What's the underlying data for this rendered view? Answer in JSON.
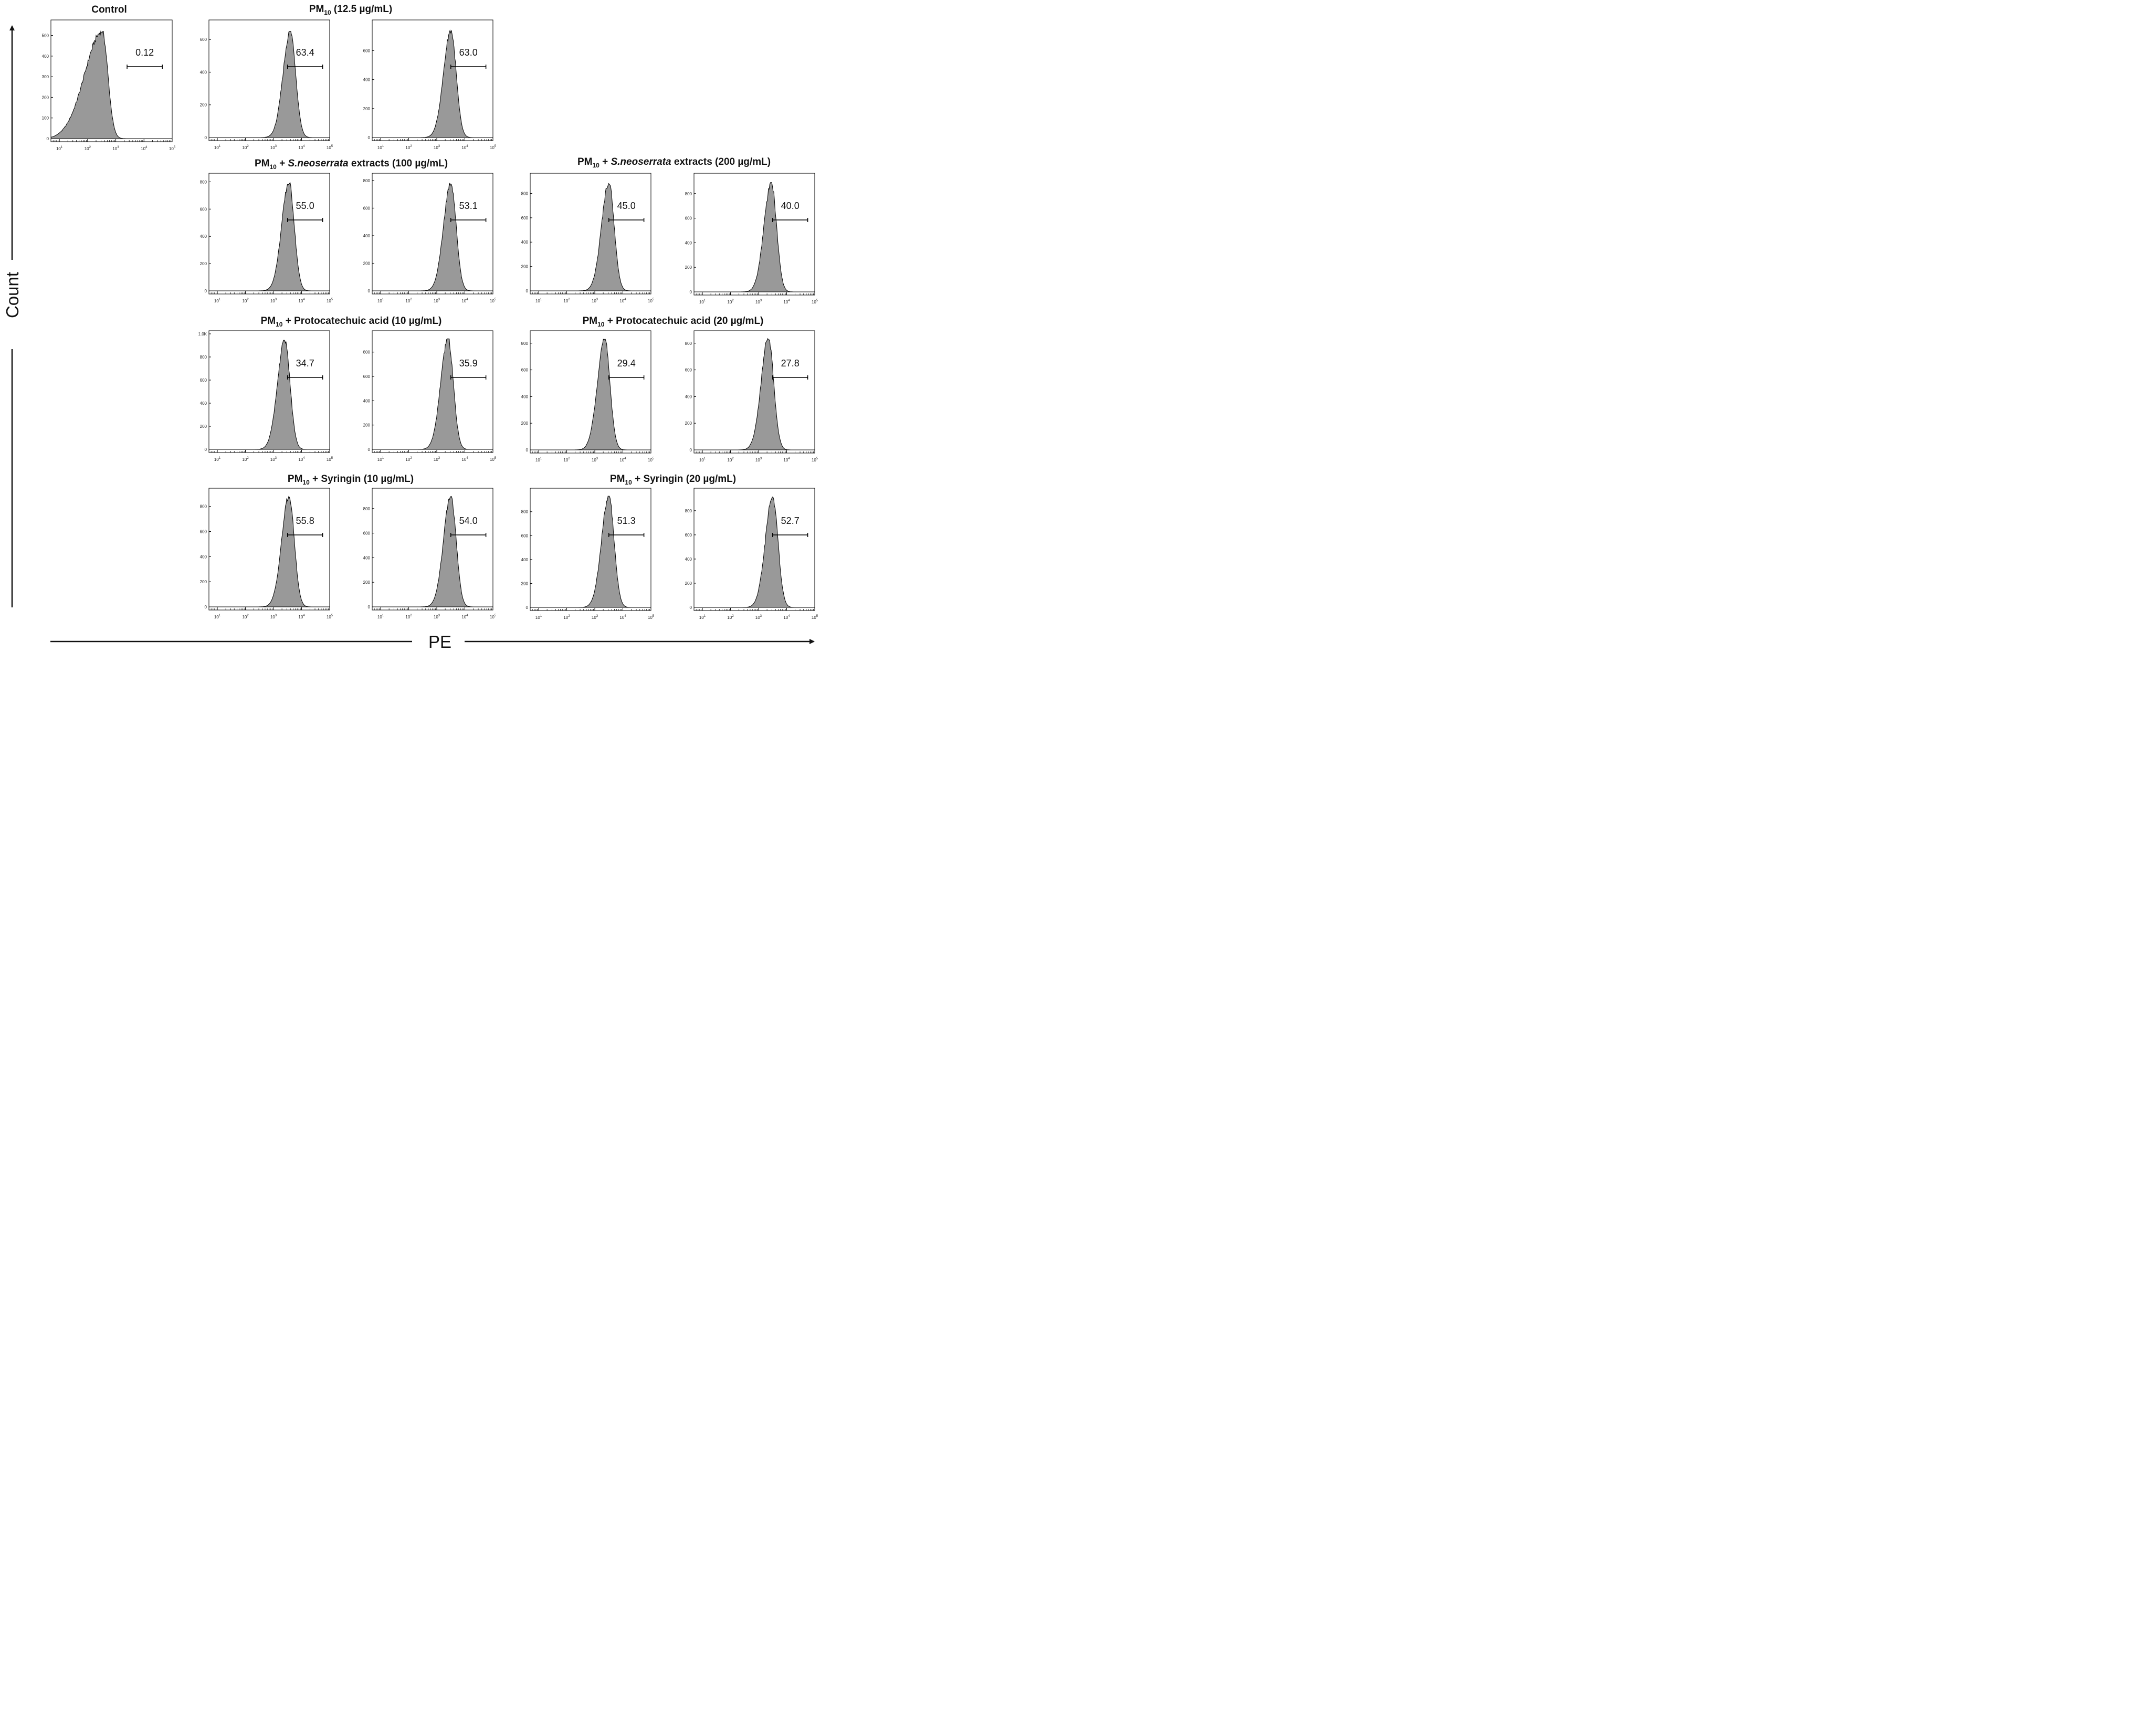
{
  "figure": {
    "y_axis_label": "Count",
    "x_axis_label": "PE",
    "titles": {
      "control": "Control",
      "pm10_only": {
        "main": "PM",
        "sub": "10",
        "rest": " (12.5 µg/mL)"
      },
      "sn_100": {
        "main": "PM",
        "sub": "10",
        "mid": " + ",
        "italic": "S.neoserrata",
        "rest": " extracts (100 µg/mL)"
      },
      "sn_200": {
        "main": "PM",
        "sub": "10",
        "mid": " + ",
        "italic": "S.neoserrata",
        "rest": " extracts (200 µg/mL)"
      },
      "pca_10": {
        "main": "PM",
        "sub": "10",
        "rest": " + Protocatechuic acid (10 µg/mL)"
      },
      "pca_20": {
        "main": "PM",
        "sub": "10",
        "rest": " + Protocatechuic acid (20 µg/mL)"
      },
      "syr_10": {
        "main": "PM",
        "sub": "10",
        "rest": " + Syringin (10 µg/mL)"
      },
      "syr_20": {
        "main": "PM",
        "sub": "10",
        "rest": " + Syringin (20 µg/mL)"
      }
    }
  },
  "chart_data": [
    {
      "type": "area",
      "group": "Control",
      "gate_percent": "0.12",
      "peak_log10": 2.52,
      "peak_count": 520,
      "ylim": [
        0,
        560
      ],
      "yticks": [
        "0",
        "100",
        "200",
        "300",
        "400",
        "500"
      ],
      "xlim": [
        0.7,
        5.0
      ],
      "xticks": [
        "1",
        "2",
        "3",
        "4",
        "5"
      ],
      "x_scale": "log10",
      "gate_log10": [
        3.4,
        4.65
      ],
      "fill": "#999999"
    },
    {
      "type": "area",
      "group": "PM10 (12.5 µg/mL)",
      "replicate": 1,
      "gate_percent": "63.4",
      "peak_log10": 3.6,
      "peak_count": 650,
      "ylim": [
        0,
        700
      ],
      "yticks": [
        "0",
        "200",
        "400",
        "600"
      ],
      "xlim": [
        0.7,
        5.0
      ],
      "xticks": [
        "1",
        "2",
        "3",
        "4",
        "5"
      ],
      "x_scale": "log10",
      "gate_log10": [
        3.5,
        4.75
      ],
      "fill": "#999999"
    },
    {
      "type": "area",
      "group": "PM10 (12.5 µg/mL)",
      "replicate": 2,
      "gate_percent": "63.0",
      "peak_log10": 3.5,
      "peak_count": 740,
      "ylim": [
        0,
        790
      ],
      "yticks": [
        "0",
        "200",
        "400",
        "600"
      ],
      "xlim": [
        0.7,
        5.0
      ],
      "xticks": [
        "1",
        "2",
        "3",
        "4",
        "5"
      ],
      "x_scale": "log10",
      "gate_log10": [
        3.5,
        4.75
      ],
      "fill": "#999999"
    },
    {
      "type": "area",
      "group": "PM10 + S.neoserrata extracts (100 µg/mL)",
      "replicate": 1,
      "gate_percent": "55.0",
      "peak_log10": 3.55,
      "peak_count": 795,
      "ylim": [
        0,
        840
      ],
      "yticks": [
        "0",
        "200",
        "400",
        "600",
        "800"
      ],
      "xlim": [
        0.7,
        5.0
      ],
      "xticks": [
        "1",
        "2",
        "3",
        "4",
        "5"
      ],
      "x_scale": "log10",
      "gate_log10": [
        3.5,
        4.75
      ],
      "fill": "#999999"
    },
    {
      "type": "area",
      "group": "PM10 + S.neoserrata extracts (100 µg/mL)",
      "replicate": 2,
      "gate_percent": "53.1",
      "peak_log10": 3.5,
      "peak_count": 785,
      "ylim": [
        0,
        830
      ],
      "yticks": [
        "0",
        "200",
        "400",
        "600",
        "800"
      ],
      "xlim": [
        0.7,
        5.0
      ],
      "xticks": [
        "1",
        "2",
        "3",
        "4",
        "5"
      ],
      "x_scale": "log10",
      "gate_log10": [
        3.5,
        4.75
      ],
      "fill": "#999999"
    },
    {
      "type": "area",
      "group": "PM10 + S.neoserrata extracts (200 µg/mL)",
      "replicate": 1,
      "gate_percent": "45.0",
      "peak_log10": 3.5,
      "peak_count": 890,
      "ylim": [
        0,
        940
      ],
      "yticks": [
        "0",
        "200",
        "400",
        "600",
        "800"
      ],
      "xlim": [
        0.7,
        5.0
      ],
      "xticks": [
        "1",
        "2",
        "3",
        "4",
        "5"
      ],
      "x_scale": "log10",
      "gate_log10": [
        3.5,
        4.75
      ],
      "fill": "#999999"
    },
    {
      "type": "area",
      "group": "PM10 + S.neoserrata extracts (200 µg/mL)",
      "replicate": 2,
      "gate_percent": "40.0",
      "peak_log10": 3.45,
      "peak_count": 890,
      "ylim": [
        0,
        940
      ],
      "yticks": [
        "0",
        "200",
        "400",
        "600",
        "800"
      ],
      "xlim": [
        0.7,
        5.0
      ],
      "xticks": [
        "1",
        "2",
        "3",
        "4",
        "5"
      ],
      "x_scale": "log10",
      "gate_log10": [
        3.5,
        4.75
      ],
      "fill": "#999999"
    },
    {
      "type": "area",
      "group": "PM10 + Protocatechuic acid (10 µg/mL)",
      "replicate": 1,
      "gate_percent": "34.7",
      "peak_log10": 3.4,
      "peak_count": 945,
      "ylim": [
        0,
        1000
      ],
      "yticks": [
        "0",
        "200",
        "400",
        "600",
        "800",
        "1.0K"
      ],
      "xlim": [
        0.7,
        5.0
      ],
      "xticks": [
        "1",
        "2",
        "3",
        "4",
        "5"
      ],
      "x_scale": "log10",
      "gate_log10": [
        3.5,
        4.75
      ],
      "fill": "#999999"
    },
    {
      "type": "area",
      "group": "PM10 + Protocatechuic acid (10 µg/mL)",
      "replicate": 2,
      "gate_percent": "35.9",
      "peak_log10": 3.4,
      "peak_count": 910,
      "ylim": [
        0,
        950
      ],
      "yticks": [
        "0",
        "200",
        "400",
        "600",
        "800"
      ],
      "xlim": [
        0.7,
        5.0
      ],
      "xticks": [
        "1",
        "2",
        "3",
        "4",
        "5"
      ],
      "x_scale": "log10",
      "gate_log10": [
        3.5,
        4.75
      ],
      "fill": "#999999"
    },
    {
      "type": "area",
      "group": "PM10 + Protocatechuic acid (20 µg/mL)",
      "replicate": 1,
      "gate_percent": "29.4",
      "peak_log10": 3.35,
      "peak_count": 830,
      "ylim": [
        0,
        870
      ],
      "yticks": [
        "0",
        "200",
        "400",
        "600",
        "800"
      ],
      "xlim": [
        0.7,
        5.0
      ],
      "xticks": [
        "1",
        "2",
        "3",
        "4",
        "5"
      ],
      "x_scale": "log10",
      "gate_log10": [
        3.5,
        4.75
      ],
      "fill": "#999999"
    },
    {
      "type": "area",
      "group": "PM10 + Protocatechuic acid (20 µg/mL)",
      "replicate": 2,
      "gate_percent": "27.8",
      "peak_log10": 3.35,
      "peak_count": 835,
      "ylim": [
        0,
        870
      ],
      "yticks": [
        "0",
        "200",
        "400",
        "600",
        "800"
      ],
      "xlim": [
        0.7,
        5.0
      ],
      "xticks": [
        "1",
        "2",
        "3",
        "4",
        "5"
      ],
      "x_scale": "log10",
      "gate_log10": [
        3.5,
        4.75
      ],
      "fill": "#999999"
    },
    {
      "type": "area",
      "group": "PM10 + Syringin (10 µg/mL)",
      "replicate": 1,
      "gate_percent": "55.8",
      "peak_log10": 3.55,
      "peak_count": 880,
      "ylim": [
        0,
        920
      ],
      "yticks": [
        "0",
        "200",
        "400",
        "600",
        "800"
      ],
      "xlim": [
        0.7,
        5.0
      ],
      "xticks": [
        "1",
        "2",
        "3",
        "4",
        "5"
      ],
      "x_scale": "log10",
      "gate_log10": [
        3.5,
        4.75
      ],
      "fill": "#999999"
    },
    {
      "type": "area",
      "group": "PM10 + Syringin (10 µg/mL)",
      "replicate": 2,
      "gate_percent": "54.0",
      "peak_log10": 3.5,
      "peak_count": 900,
      "ylim": [
        0,
        940
      ],
      "yticks": [
        "0",
        "200",
        "400",
        "600",
        "800"
      ],
      "xlim": [
        0.7,
        5.0
      ],
      "xticks": [
        "1",
        "2",
        "3",
        "4",
        "5"
      ],
      "x_scale": "log10",
      "gate_log10": [
        3.5,
        4.75
      ],
      "fill": "#999999"
    },
    {
      "type": "area",
      "group": "PM10 + Syringin (20 µg/mL)",
      "replicate": 1,
      "gate_percent": "51.3",
      "peak_log10": 3.5,
      "peak_count": 930,
      "ylim": [
        0,
        970
      ],
      "yticks": [
        "0",
        "200",
        "400",
        "600",
        "800"
      ],
      "xlim": [
        0.7,
        5.0
      ],
      "xticks": [
        "1",
        "2",
        "3",
        "4",
        "5"
      ],
      "x_scale": "log10",
      "gate_log10": [
        3.5,
        4.75
      ],
      "fill": "#999999"
    },
    {
      "type": "area",
      "group": "PM10 + Syringin (20 µg/mL)",
      "replicate": 2,
      "gate_percent": "52.7",
      "peak_log10": 3.5,
      "peak_count": 915,
      "ylim": [
        0,
        960
      ],
      "yticks": [
        "0",
        "200",
        "400",
        "600",
        "800"
      ],
      "xlim": [
        0.7,
        5.0
      ],
      "xticks": [
        "1",
        "2",
        "3",
        "4",
        "5"
      ],
      "x_scale": "log10",
      "gate_log10": [
        3.5,
        4.75
      ],
      "fill": "#999999"
    }
  ]
}
